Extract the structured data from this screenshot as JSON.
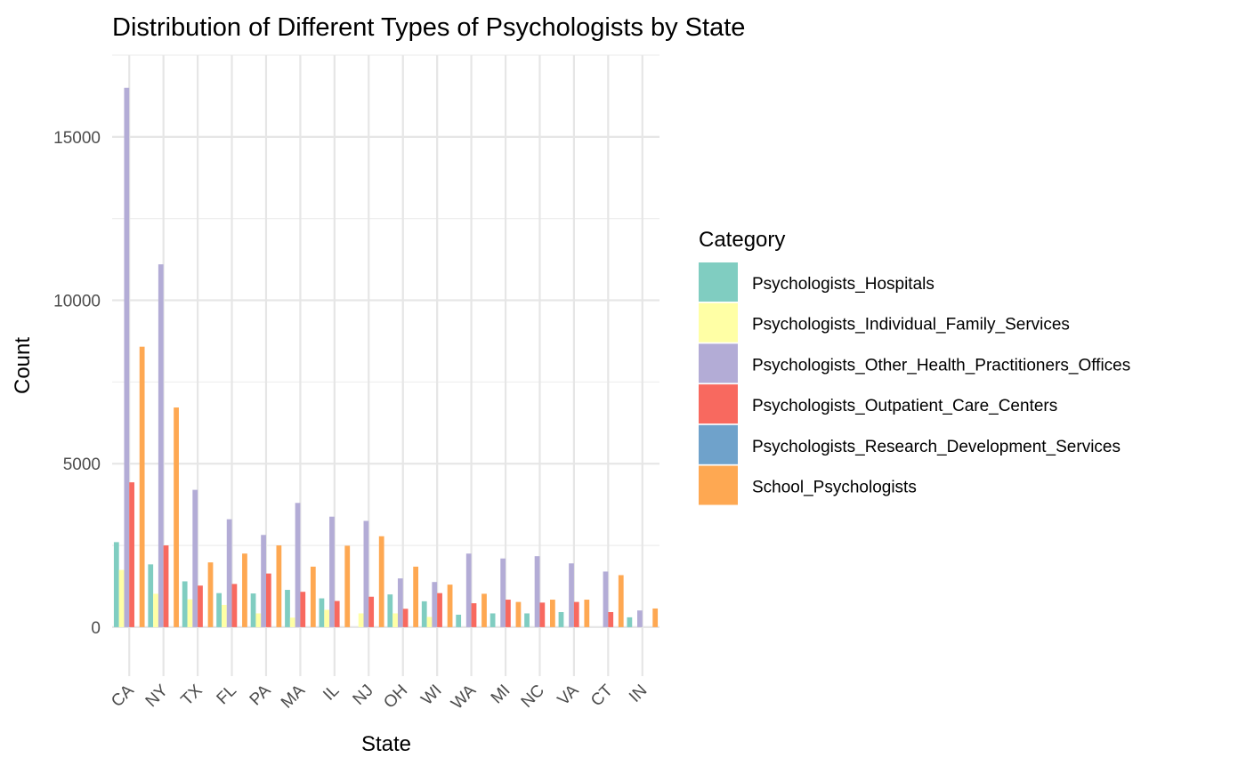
{
  "chart_data": {
    "type": "bar",
    "title": "Distribution of Different Types of Psychologists by State",
    "xlabel": "State",
    "ylabel": "Count",
    "ylim": [
      -1500,
      17500
    ],
    "yticks": [
      0,
      5000,
      10000,
      15000
    ],
    "grid": true,
    "legend_position": "right",
    "legend_title": "Category",
    "categories": [
      "CA",
      "NY",
      "TX",
      "FL",
      "PA",
      "MA",
      "IL",
      "NJ",
      "OH",
      "WI",
      "WA",
      "MI",
      "NC",
      "VA",
      "CT",
      "IN"
    ],
    "series": [
      {
        "name": "Psychologists_Hospitals",
        "color": "#80CDC1",
        "values": [
          2600,
          1920,
          1400,
          1040,
          1030,
          1140,
          880,
          0,
          1000,
          790,
          380,
          420,
          420,
          460,
          0,
          300
        ]
      },
      {
        "name": "Psychologists_Individual_Family_Services",
        "color": "#FFFFA5",
        "values": [
          1750,
          1020,
          850,
          680,
          420,
          290,
          530,
          420,
          420,
          310,
          0,
          0,
          0,
          0,
          0,
          0
        ]
      },
      {
        "name": "Psychologists_Other_Health_Practitioners_Offices",
        "color": "#B3ACD6",
        "values": [
          16500,
          11100,
          4200,
          3300,
          2820,
          3800,
          3380,
          3250,
          1490,
          1380,
          2250,
          2100,
          2170,
          1950,
          1700,
          510
        ]
      },
      {
        "name": "Psychologists_Outpatient_Care_Centers",
        "color": "#F8695F",
        "values": [
          4430,
          2500,
          1270,
          1320,
          1640,
          1080,
          800,
          930,
          560,
          1040,
          730,
          840,
          750,
          770,
          460,
          0
        ]
      },
      {
        "name": "Psychologists_Research_Development_Services",
        "color": "#6FA2CB",
        "values": [
          0,
          0,
          0,
          0,
          0,
          0,
          0,
          0,
          0,
          0,
          0,
          0,
          0,
          0,
          0,
          0
        ]
      },
      {
        "name": "School_Psychologists",
        "color": "#FEA852",
        "values": [
          8580,
          6720,
          1980,
          2250,
          2500,
          1850,
          2490,
          2780,
          1850,
          1300,
          1020,
          770,
          840,
          840,
          1590,
          570
        ]
      }
    ]
  }
}
